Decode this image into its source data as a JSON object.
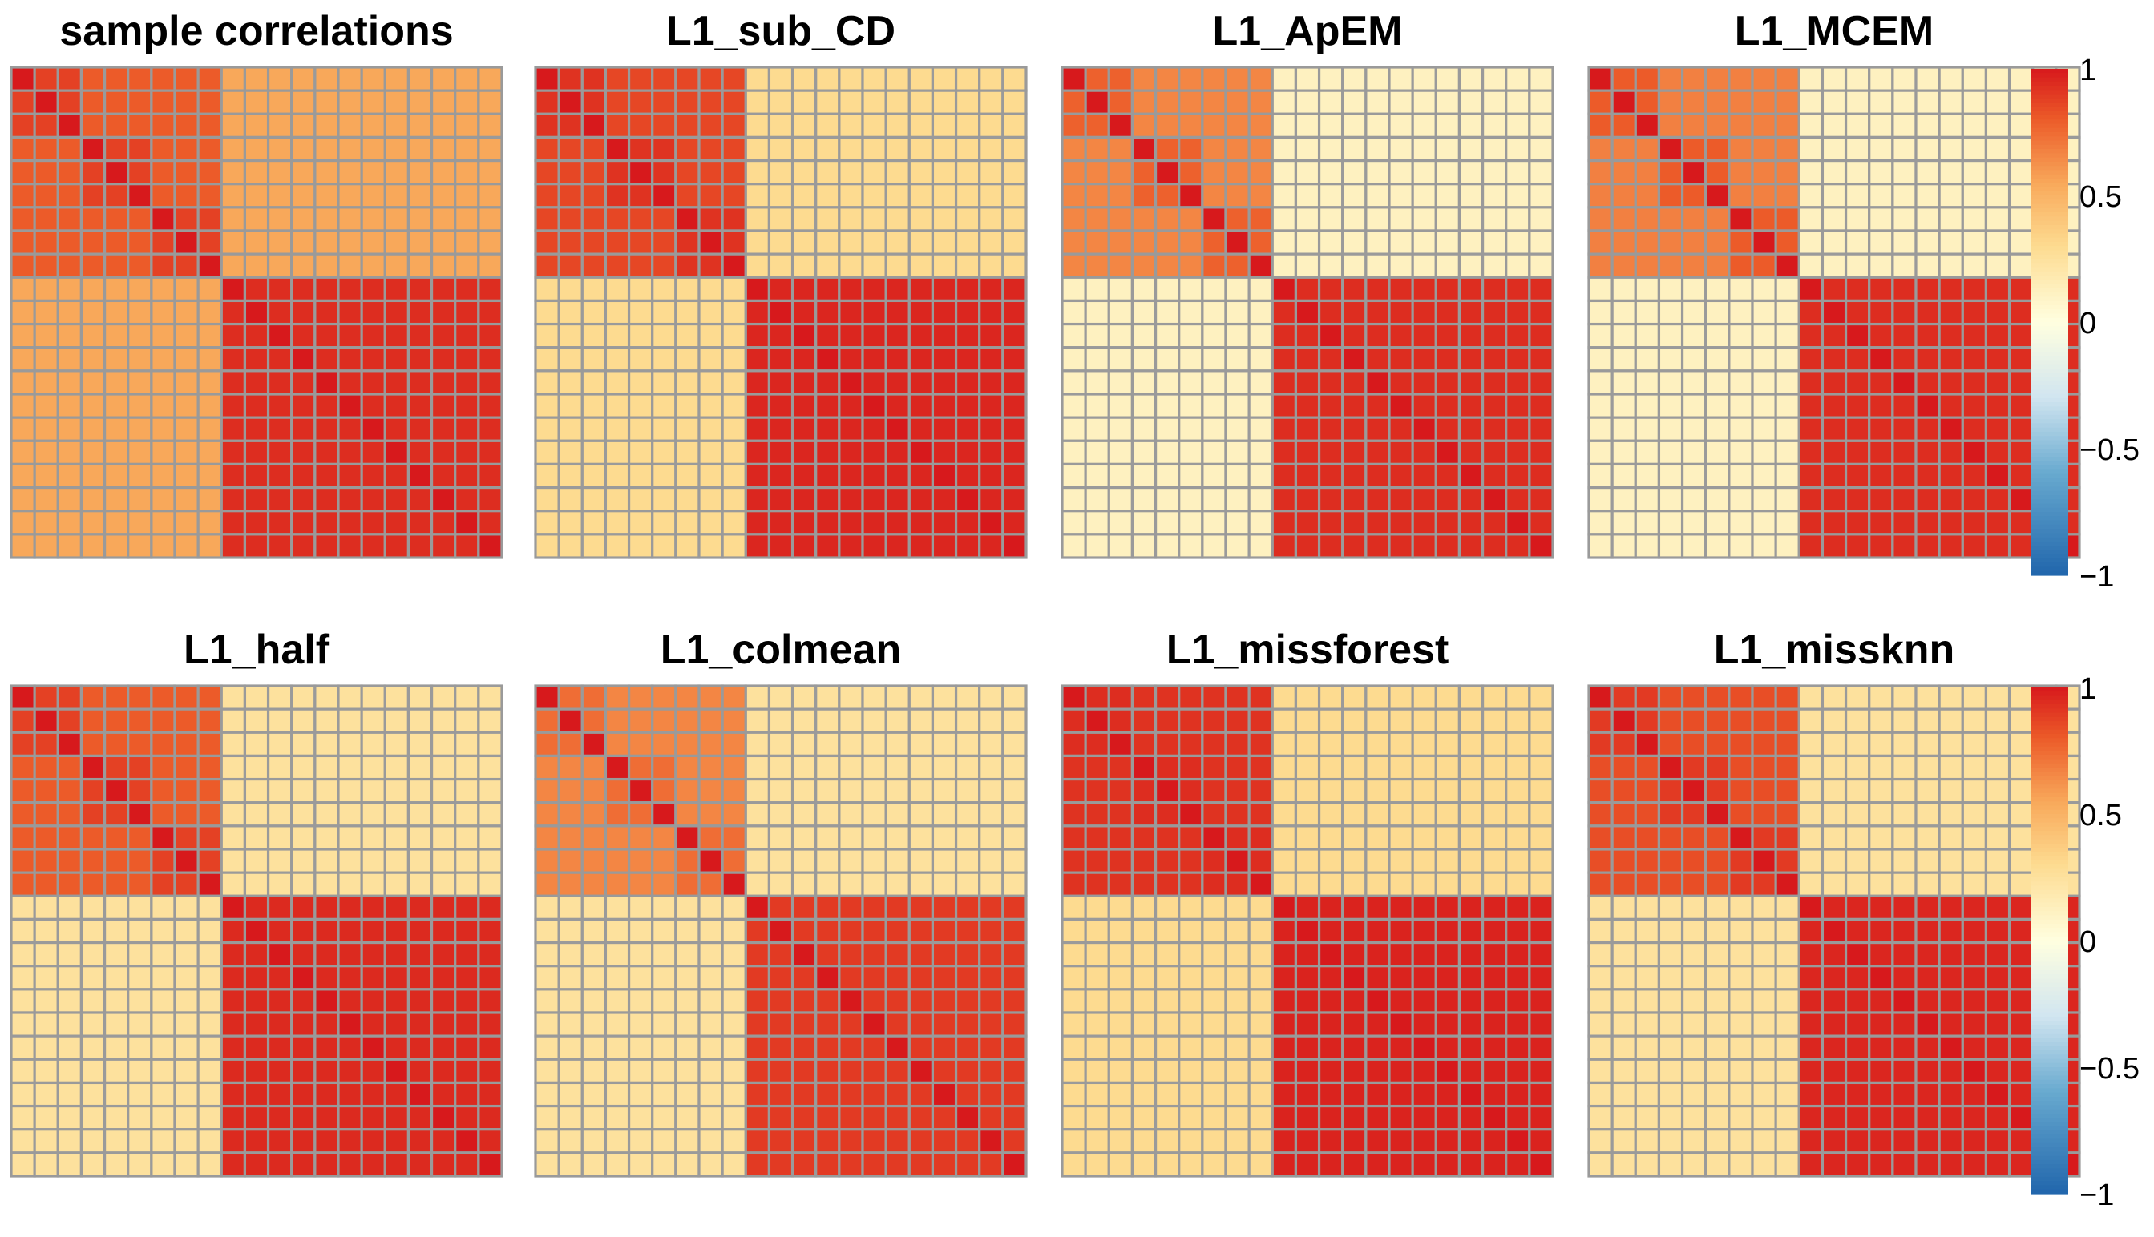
{
  "chart_data": [
    {
      "type": "heatmap",
      "title": "sample correlations",
      "size": 21,
      "blocks": [
        {
          "start": 0,
          "end": 3,
          "within": 0.88
        },
        {
          "start": 3,
          "end": 6,
          "within": 0.88
        },
        {
          "start": 6,
          "end": 9,
          "within": 0.88
        },
        {
          "start": 9,
          "end": 21,
          "within": 0.94
        }
      ],
      "group_split": 9,
      "within_group1": 0.8,
      "within_group2": 0.94,
      "between_groups": 0.55,
      "diagonal": 1.0
    },
    {
      "type": "heatmap",
      "title": "L1_sub_CD",
      "size": 21,
      "blocks": [
        {
          "start": 0,
          "end": 3,
          "within": 0.92
        },
        {
          "start": 3,
          "end": 6,
          "within": 0.92
        },
        {
          "start": 6,
          "end": 9,
          "within": 0.92
        },
        {
          "start": 9,
          "end": 21,
          "within": 0.96
        }
      ],
      "group_split": 9,
      "within_group1": 0.86,
      "within_group2": 0.96,
      "between_groups": 0.3,
      "diagonal": 1.0
    },
    {
      "type": "heatmap",
      "title": "L1_ApEM",
      "size": 21,
      "blocks": [
        {
          "start": 0,
          "end": 3,
          "within": 0.78
        },
        {
          "start": 3,
          "end": 6,
          "within": 0.78
        },
        {
          "start": 6,
          "end": 9,
          "within": 0.78
        },
        {
          "start": 9,
          "end": 21,
          "within": 0.94
        }
      ],
      "group_split": 9,
      "within_group1": 0.66,
      "within_group2": 0.92,
      "between_groups": 0.12,
      "diagonal": 1.0
    },
    {
      "type": "heatmap",
      "title": "L1_MCEM",
      "size": 21,
      "blocks": [
        {
          "start": 0,
          "end": 3,
          "within": 0.8
        },
        {
          "start": 3,
          "end": 6,
          "within": 0.8
        },
        {
          "start": 6,
          "end": 9,
          "within": 0.8
        },
        {
          "start": 9,
          "end": 21,
          "within": 0.94
        }
      ],
      "group_split": 9,
      "within_group1": 0.68,
      "within_group2": 0.92,
      "between_groups": 0.12,
      "diagonal": 1.0
    },
    {
      "type": "heatmap",
      "title": "L1_half",
      "size": 21,
      "blocks": [
        {
          "start": 0,
          "end": 3,
          "within": 0.88
        },
        {
          "start": 3,
          "end": 6,
          "within": 0.88
        },
        {
          "start": 6,
          "end": 9,
          "within": 0.88
        },
        {
          "start": 9,
          "end": 21,
          "within": 0.95
        }
      ],
      "group_split": 9,
      "within_group1": 0.8,
      "within_group2": 0.95,
      "between_groups": 0.25,
      "diagonal": 1.0
    },
    {
      "type": "heatmap",
      "title": "L1_colmean",
      "size": 21,
      "blocks": [
        {
          "start": 0,
          "end": 3,
          "within": 0.74
        },
        {
          "start": 3,
          "end": 6,
          "within": 0.74
        },
        {
          "start": 6,
          "end": 9,
          "within": 0.74
        },
        {
          "start": 9,
          "end": 21,
          "within": 0.9
        }
      ],
      "group_split": 9,
      "within_group1": 0.66,
      "within_group2": 0.86,
      "between_groups": 0.25,
      "diagonal": 1.0
    },
    {
      "type": "heatmap",
      "title": "L1_missforest",
      "size": 21,
      "blocks": [
        {
          "start": 0,
          "end": 3,
          "within": 0.94
        },
        {
          "start": 3,
          "end": 6,
          "within": 0.94
        },
        {
          "start": 6,
          "end": 9,
          "within": 0.94
        },
        {
          "start": 9,
          "end": 21,
          "within": 0.97
        }
      ],
      "group_split": 9,
      "within_group1": 0.92,
      "within_group2": 0.97,
      "between_groups": 0.3,
      "diagonal": 1.0
    },
    {
      "type": "heatmap",
      "title": "L1_missknn",
      "size": 21,
      "blocks": [
        {
          "start": 0,
          "end": 3,
          "within": 0.9
        },
        {
          "start": 3,
          "end": 6,
          "within": 0.9
        },
        {
          "start": 6,
          "end": 9,
          "within": 0.9
        },
        {
          "start": 9,
          "end": 21,
          "within": 0.96
        }
      ],
      "group_split": 9,
      "within_group1": 0.84,
      "within_group2": 0.96,
      "between_groups": 0.25,
      "diagonal": 1.0
    }
  ],
  "legend": {
    "ticks": [
      1,
      0.5,
      0,
      -0.5,
      -1
    ],
    "tick_labels": [
      "1",
      "0.5",
      "0",
      "−0.5",
      "−1"
    ],
    "range": [
      -1,
      1
    ],
    "palette": [
      "#2166AC",
      "#67A9CF",
      "#D1E5F0",
      "#FFFFE0",
      "#FDDB90",
      "#F8A85A",
      "#EC5B29",
      "#D7191C"
    ],
    "palette_stops": [
      -1,
      -0.6,
      -0.3,
      0,
      0.3,
      0.55,
      0.8,
      1
    ]
  },
  "colors": {
    "cell_border": "#9A9A9A",
    "background": "#FFFFFF"
  }
}
